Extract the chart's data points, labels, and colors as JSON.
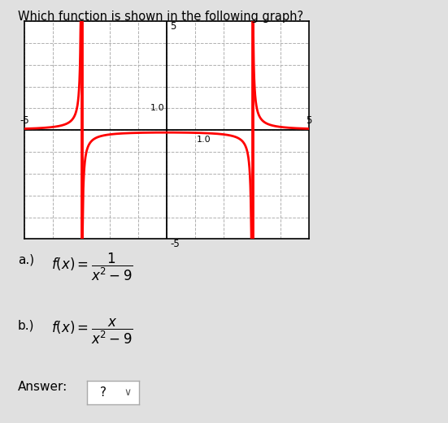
{
  "title": "Which function is shown in the following graph?",
  "title_fontsize": 10.5,
  "xlim": [
    -5,
    5
  ],
  "ylim": [
    -5,
    5
  ],
  "xticks": [
    -5,
    -4,
    -3,
    -2,
    -1,
    0,
    1,
    2,
    3,
    4,
    5
  ],
  "yticks": [
    -5,
    -4,
    -3,
    -2,
    -1,
    0,
    1,
    2,
    3,
    4,
    5
  ],
  "curve_color": "#ff0000",
  "axis_color": "#000000",
  "grid_color": "#b0b0b0",
  "background_color": "#ffffff",
  "outer_background": "#e0e0e0",
  "option_a": "a.)  $f(x) = \\dfrac{1}{x^2 - 9}$",
  "option_b": "b.)  $f(x) = \\dfrac{x}{x^2 - 9}$",
  "answer_label": "Answer:"
}
